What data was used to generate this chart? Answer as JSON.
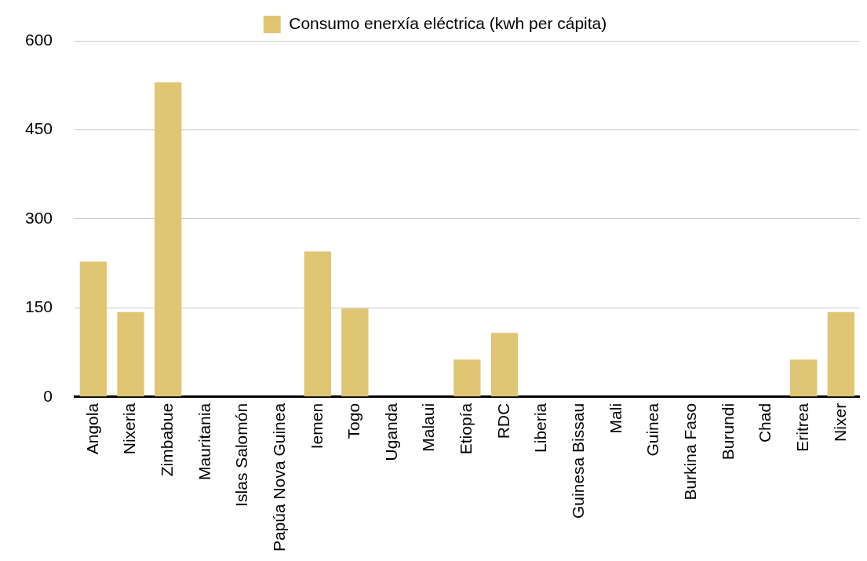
{
  "chart_data": {
    "type": "bar",
    "categories": [
      "Angola",
      "Nixeria",
      "Zimbabue",
      "Mauritania",
      "Islas Salomón",
      "Papúa Nova Guinea",
      "Iemen",
      "Togo",
      "Uganda",
      "Malaui",
      "Etiopía",
      "RDC",
      "Liberia",
      "Guinesa Bissau",
      "Mali",
      "Guinea",
      "Burkina Faso",
      "Burundi",
      "Chad",
      "Eritrea",
      "Nixer"
    ],
    "series": [
      {
        "name": "Consumo enerxía eléctrica (kwh per cápita)",
        "color": "#e0c572",
        "values": [
          228,
          143,
          530,
          null,
          null,
          null,
          245,
          149,
          null,
          null,
          63,
          108,
          null,
          null,
          null,
          null,
          null,
          null,
          null,
          63,
          143
        ]
      }
    ],
    "ylim": [
      0,
      600
    ],
    "yticks": [
      0,
      150,
      300,
      450,
      600
    ],
    "grid": "y",
    "legend": "top"
  }
}
